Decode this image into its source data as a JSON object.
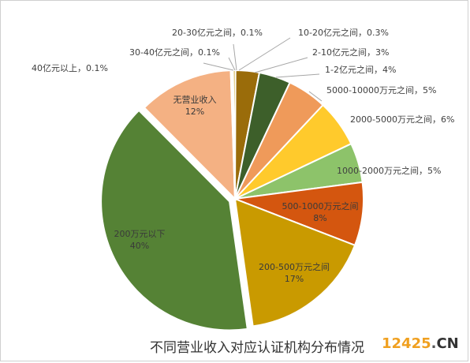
{
  "chart_data": {
    "type": "pie",
    "title": "不同营业收入对应认证机构分布情况",
    "slices": [
      {
        "label": "20-30亿元之间",
        "pct_label": "0.1%",
        "value": 0.1,
        "color": "#b7b7b7"
      },
      {
        "label": "10-20亿元之间",
        "pct_label": "0.3%",
        "value": 0.3,
        "color": "#c9a227"
      },
      {
        "label": "2-10亿元之间",
        "pct_label": "3%",
        "value": 3,
        "color": "#9a6c0a"
      },
      {
        "label": "1-2亿元之间",
        "pct_label": "4%",
        "value": 4,
        "color": "#3d5f2a"
      },
      {
        "label": "5000-10000万元之间",
        "pct_label": "5%",
        "value": 5,
        "color": "#ef9a5a"
      },
      {
        "label": "2000-5000万元之间",
        "pct_label": "6%",
        "value": 6,
        "color": "#ffca2c"
      },
      {
        "label": "1000-2000万元之间",
        "pct_label": "5%",
        "value": 5,
        "color": "#8dc36a"
      },
      {
        "label": "500-1000万元之间",
        "pct_label": "8%",
        "value": 8,
        "color": "#d4560f"
      },
      {
        "label": "200-500万元之间",
        "pct_label": "17%",
        "value": 17,
        "color": "#c99a00"
      },
      {
        "label": "200万元以下",
        "pct_label": "40%",
        "value": 40,
        "color": "#558235"
      },
      {
        "label": "无营业收入",
        "pct_label": "12%",
        "value": 12,
        "color": "#f4b183"
      },
      {
        "label": "40亿元以上",
        "pct_label": "0.1%",
        "value": 0.1,
        "color": "#7f7f7f"
      },
      {
        "label": "30-40亿元之间",
        "pct_label": "0.1%",
        "value": 0.1,
        "color": "#d9d9d9"
      }
    ]
  },
  "watermark": {
    "num": "12425",
    "dot": ".",
    "tld": "CN"
  }
}
